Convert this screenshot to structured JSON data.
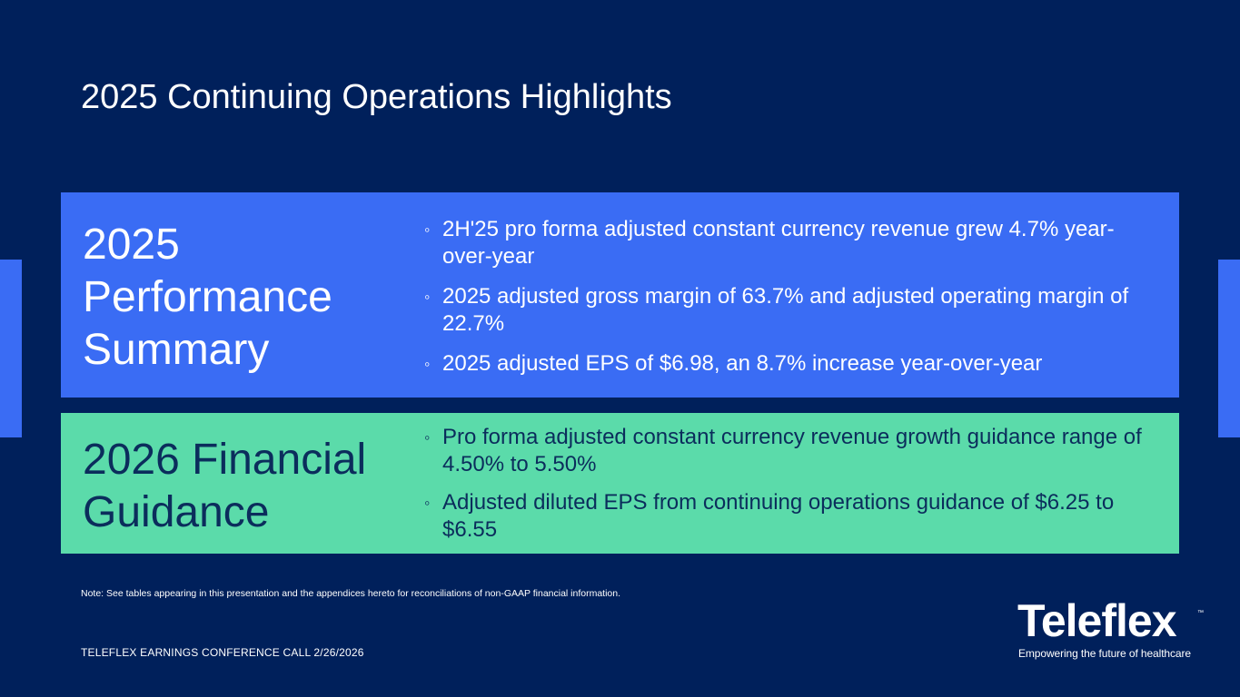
{
  "slide": {
    "title": "2025 Continuing Operations Highlights"
  },
  "performance": {
    "heading": "2025 Performance Summary",
    "bullets": [
      "2H'25 pro forma adjusted constant currency revenue grew 4.7% year-over-year",
      "2025 adjusted gross margin of 63.7% and adjusted operating margin of 22.7%",
      "2025 adjusted EPS of $6.98, an 8.7% increase year-over-year"
    ]
  },
  "guidance": {
    "heading": "2026 Financial Guidance",
    "bullets": [
      "Pro forma adjusted constant currency revenue growth guidance range of 4.50% to 5.50%",
      "Adjusted diluted EPS from continuing operations guidance of $6.25 to $6.55"
    ]
  },
  "bullet_marker": "◦",
  "note": {
    "label": "Note:",
    "text": "See tables appearing in this presentation and the appendices hereto for reconciliations of non-GAAP financial information."
  },
  "footer": "TELEFLEX EARNINGS CONFERENCE CALL 2/26/2026",
  "logo": {
    "name": "Teleflex",
    "trademark": "™",
    "tagline": "Empowering the future of healthcare"
  },
  "colors": {
    "background": "#00205b",
    "performance_panel": "#3a6cf4",
    "guidance_panel": "#5bdbaa",
    "guidance_text": "#0b2d5c"
  }
}
